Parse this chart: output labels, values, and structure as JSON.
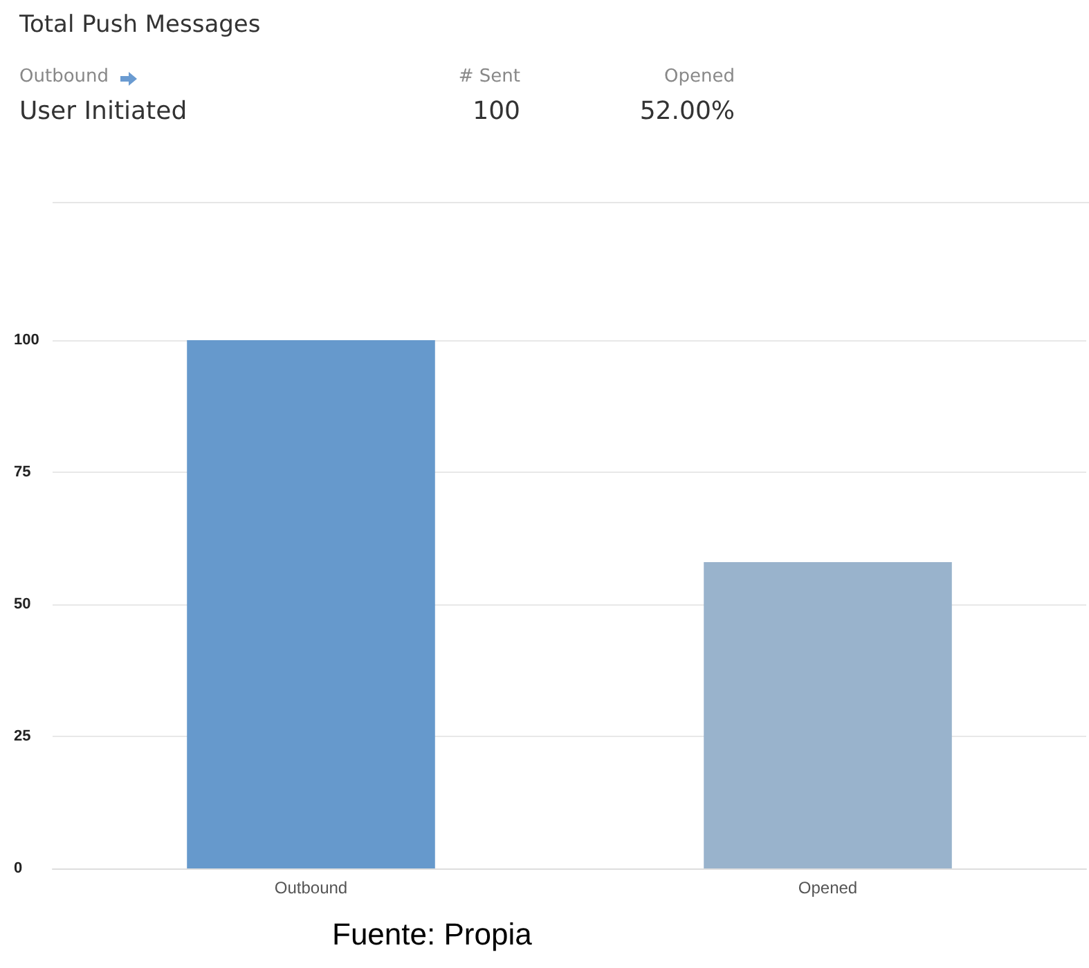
{
  "chart_data": {
    "type": "bar",
    "title": "Total Push Messages",
    "annotations": [
      "Outbound",
      "User Initiated",
      "# Sent",
      "100",
      "Opened",
      "52.00%",
      "Fuente: Propia"
    ],
    "categories": [
      "Outbound",
      "Opened"
    ],
    "values": [
      100,
      58
    ],
    "colors": [
      "#6699cc",
      "#99b3cc"
    ],
    "ylim": [
      0,
      100
    ],
    "yticks": [
      0,
      25,
      50,
      75,
      100
    ],
    "grid": "y"
  }
}
